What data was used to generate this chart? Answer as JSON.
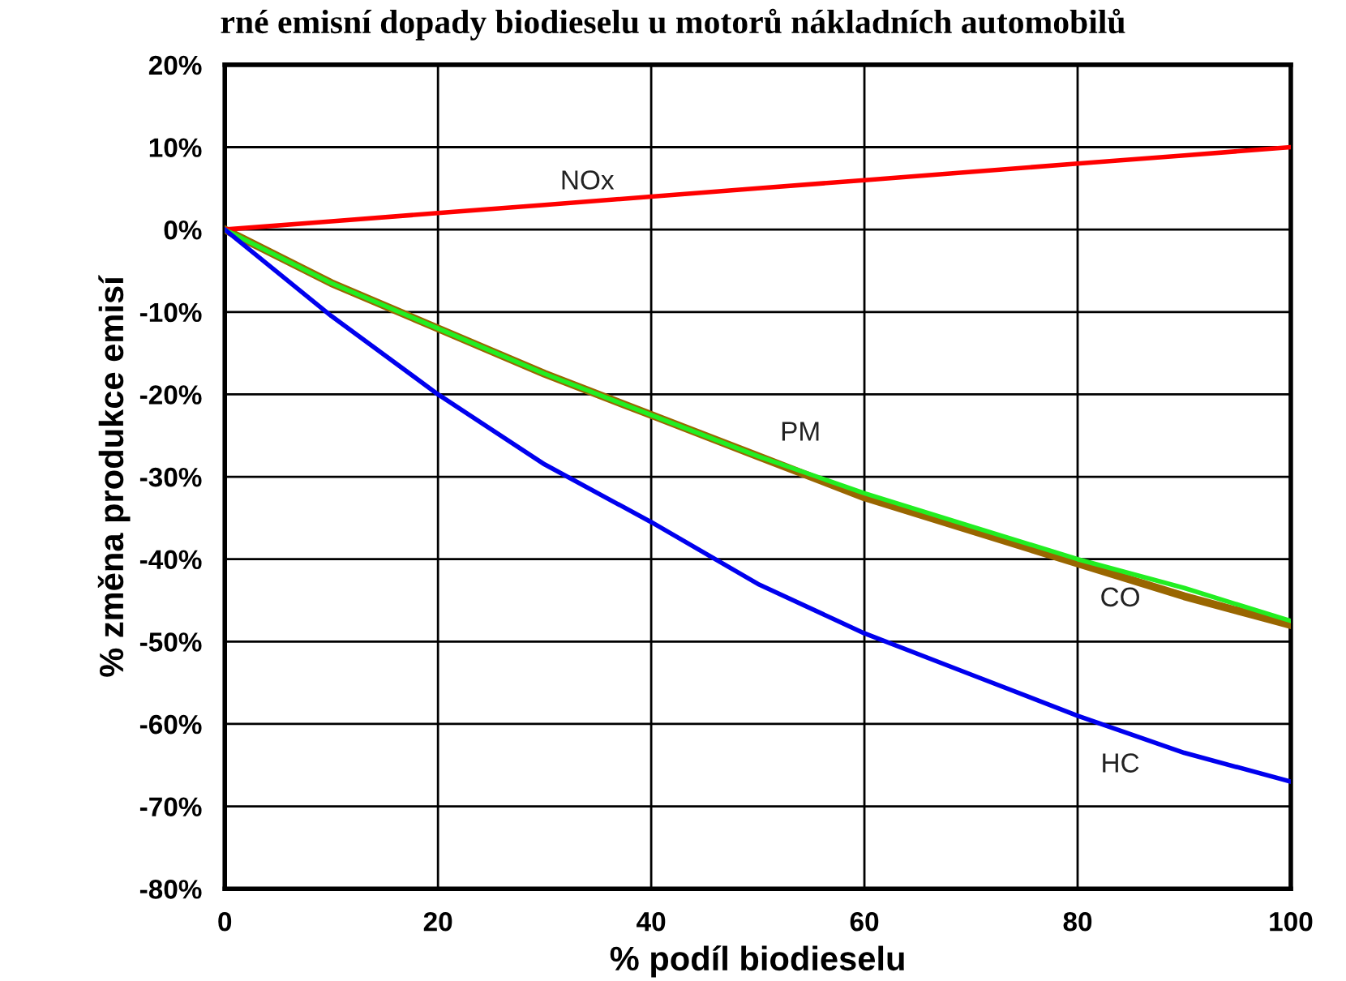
{
  "chart_data": {
    "type": "line",
    "title": "rné emisní dopady biodieselu u motorů nákladních automobilů",
    "xlabel": "% podíl biodieselu",
    "ylabel": "% změna produkce emisí",
    "x": [
      0,
      10,
      20,
      30,
      40,
      50,
      60,
      70,
      80,
      90,
      100
    ],
    "series": [
      {
        "name": "NOx",
        "color": "#ff0000",
        "values": [
          0,
          1,
          2,
          3,
          4,
          5,
          6,
          7,
          8,
          9,
          10
        ]
      },
      {
        "name": "PM",
        "color": "#22ee22",
        "values": [
          0,
          -6.5,
          -12,
          -17.5,
          -22.5,
          -27.5,
          -32,
          -36,
          -40,
          -43.5,
          -47.5
        ]
      },
      {
        "name": "CO",
        "color": "#996600",
        "values": [
          0,
          -6.5,
          -12,
          -17.5,
          -22.5,
          -27.5,
          -32.5,
          -36.5,
          -40.5,
          -44.5,
          -48
        ]
      },
      {
        "name": "HC",
        "color": "#0000ee",
        "values": [
          0,
          -10.5,
          -20,
          -28.5,
          -35.5,
          -43,
          -49,
          -54,
          -59,
          -63.5,
          -67
        ]
      }
    ],
    "xlim": [
      0,
      100
    ],
    "xticks": [
      0,
      20,
      40,
      60,
      80,
      100
    ],
    "ylim": [
      -80,
      20
    ],
    "yticks": [
      {
        "value": -80,
        "label": "-80%"
      },
      {
        "value": -70,
        "label": "-70%"
      },
      {
        "value": -60,
        "label": "-60%"
      },
      {
        "value": -50,
        "label": "-50%"
      },
      {
        "value": -40,
        "label": "-40%"
      },
      {
        "value": -30,
        "label": "-30%"
      },
      {
        "value": -20,
        "label": "-20%"
      },
      {
        "value": -10,
        "label": "-10%"
      },
      {
        "value": 0,
        "label": "0%"
      },
      {
        "value": 10,
        "label": "10%"
      },
      {
        "value": 20,
        "label": "20%"
      }
    ],
    "grid": true,
    "legend": false,
    "marker": "none",
    "line_style": "solid"
  }
}
